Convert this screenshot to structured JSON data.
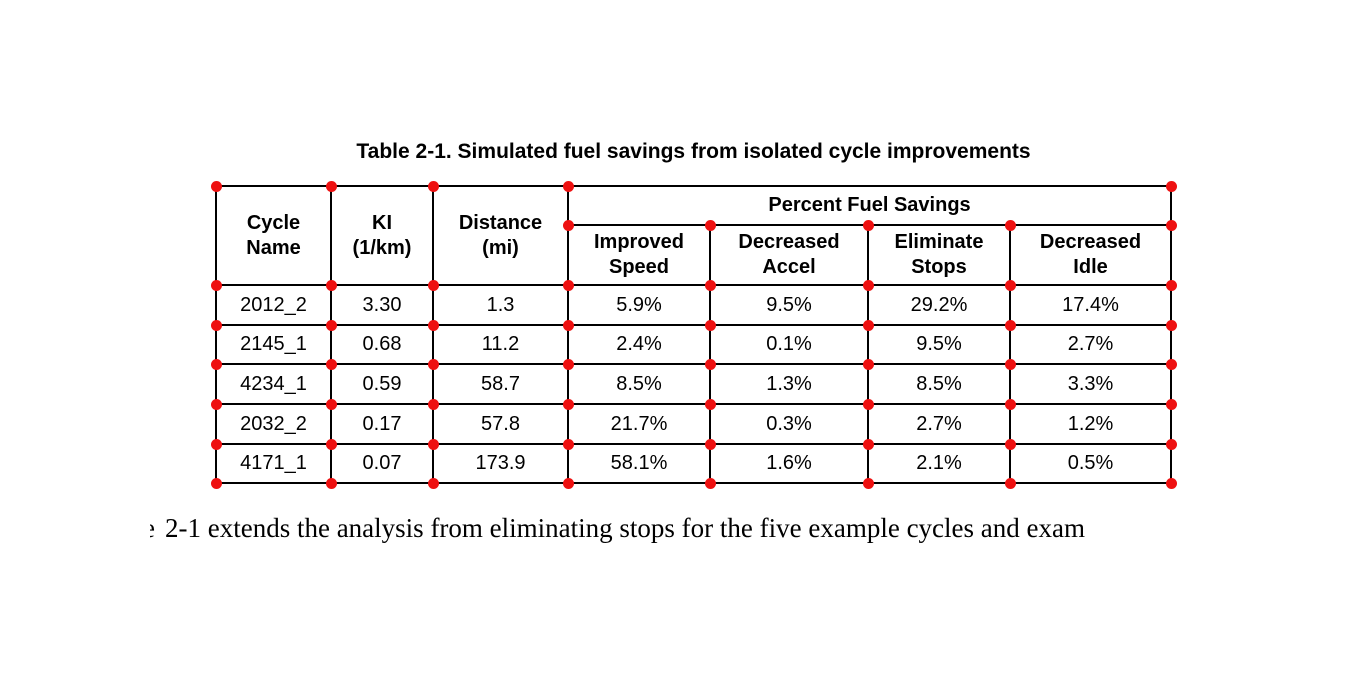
{
  "caption": {
    "text": "Table 2-1. Simulated fuel savings from isolated cycle improvements"
  },
  "table": {
    "headers": {
      "cycle_name": "Cycle\nName",
      "ki": "KI\n(1/km)",
      "distance": "Distance\n(mi)",
      "group": "Percent Fuel Savings",
      "improved_speed": "Improved\nSpeed",
      "decreased_accel": "Decreased\nAccel",
      "eliminate_stops": "Eliminate\nStops",
      "decreased_idle": "Decreased\nIdle"
    },
    "rows": [
      {
        "cycle": "2012_2",
        "ki": "3.30",
        "distance": "1.3",
        "improved_speed": "5.9%",
        "decreased_accel": "9.5%",
        "eliminate_stops": "29.2%",
        "decreased_idle": "17.4%"
      },
      {
        "cycle": "2145_1",
        "ki": "0.68",
        "distance": "11.2",
        "improved_speed": "2.4%",
        "decreased_accel": "0.1%",
        "eliminate_stops": "9.5%",
        "decreased_idle": "2.7%"
      },
      {
        "cycle": "4234_1",
        "ki": "0.59",
        "distance": "58.7",
        "improved_speed": "8.5%",
        "decreased_accel": "1.3%",
        "eliminate_stops": "8.5%",
        "decreased_idle": "3.3%"
      },
      {
        "cycle": "2032_2",
        "ki": "0.17",
        "distance": "57.8",
        "improved_speed": "21.7%",
        "decreased_accel": "0.3%",
        "eliminate_stops": "2.7%",
        "decreased_idle": "1.2%"
      },
      {
        "cycle": "4171_1",
        "ki": "0.07",
        "distance": "173.9",
        "improved_speed": "58.1%",
        "decreased_accel": "1.6%",
        "eliminate_stops": "2.1%",
        "decreased_idle": "0.5%"
      }
    ]
  },
  "annotation": {
    "marker_color": "#ee1111",
    "marker_name": "cell-corner-marker"
  },
  "body_text": {
    "leading_fragment": "e",
    "text": "2-1 extends the analysis from eliminating stops for the five example cycles and exam"
  }
}
